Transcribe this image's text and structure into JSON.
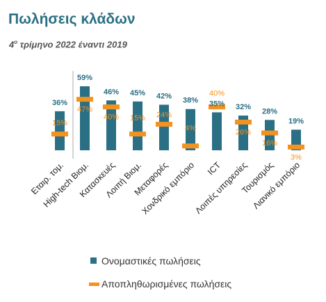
{
  "header": {
    "title": "Πωλήσεις κλάδων",
    "subtitle_prefix": "4",
    "subtitle_sup": "ο",
    "subtitle_rest": " τρίμηνο 2022 έναντι 2019"
  },
  "chart_data": {
    "type": "bar",
    "title": "Πωλήσεις κλάδων",
    "categories": [
      "Εταιρ. τομ.",
      "High-tech Βιομ.",
      "Κατασκευές",
      "Λοιπή Βιομ.",
      "Μεταφορές",
      "Χονδρικό εμπόριο",
      "ICT",
      "Λοιπές υπηρεσίες",
      "Τουρισμός",
      "Λιανικό εμπόριο"
    ],
    "series": [
      {
        "name": "Ονομαστικές πωλήσεις",
        "values": [
          36,
          59,
          46,
          45,
          42,
          38,
          35,
          32,
          28,
          19
        ],
        "labels": [
          "36%",
          "59%",
          "46%",
          "45%",
          "42%",
          "38%",
          "35%",
          "32%",
          "28%",
          "19%"
        ],
        "color": "#2a6f84"
      },
      {
        "name": "Αποπληθωρισμένες πωλήσεις",
        "values": [
          15,
          47,
          40,
          15,
          24,
          4,
          40,
          26,
          16,
          3
        ],
        "labels": [
          "15%",
          "47%",
          "40%",
          "15%",
          "24%",
          "4%",
          "40%",
          "26%",
          "16%",
          "3%"
        ],
        "color": "#f39220"
      }
    ],
    "legend": "bottom",
    "grid": false
  }
}
